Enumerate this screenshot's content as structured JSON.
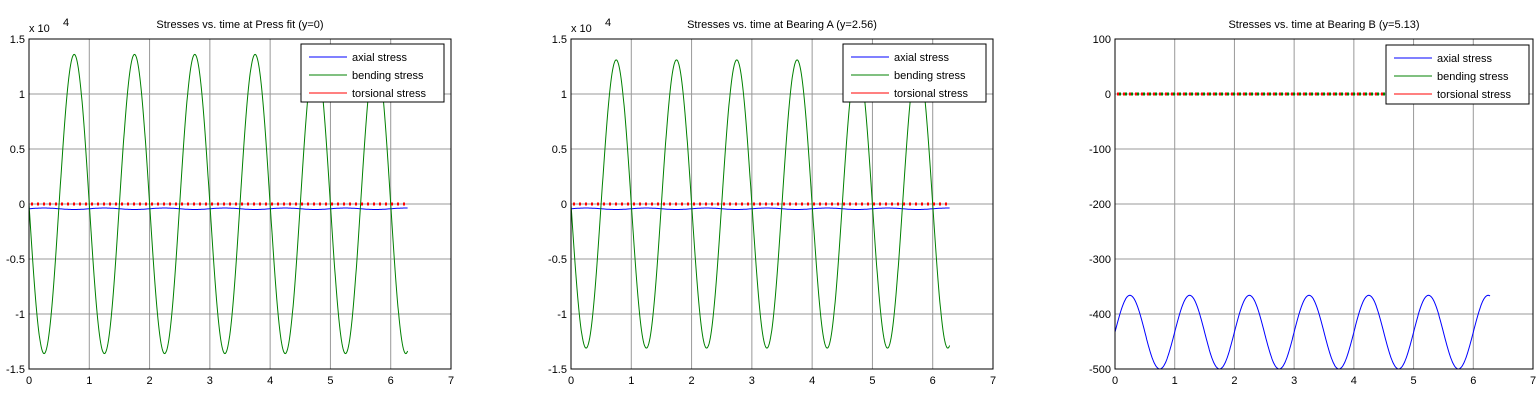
{
  "chart_data": [
    {
      "type": "line",
      "title": "Stresses vs. time at Press fit (y=0)",
      "exponent_label": "x 10",
      "exponent_power": "4",
      "xlim": [
        0,
        7
      ],
      "ylim": [
        -1.5,
        1.5
      ],
      "y_scale": 10000,
      "xticks": [
        "0",
        "1",
        "2",
        "3",
        "4",
        "5",
        "6",
        "7"
      ],
      "yticks": [
        "-1.5",
        "-1",
        "-0.5",
        "0",
        "0.5",
        "1",
        "1.5"
      ],
      "grid": true,
      "legend_position": "top-right",
      "t_range": [
        0,
        6.28
      ],
      "series": [
        {
          "name": "axial stress",
          "color": "#0000ff",
          "offset": -433,
          "amplitude": 67,
          "period": 1,
          "sign": 1
        },
        {
          "name": "bending stress",
          "color": "#008000",
          "offset": 0,
          "amplitude": 13600,
          "period": 1,
          "sign": -1
        },
        {
          "name": "torsional stress",
          "color": "#ff0000",
          "offset": 0,
          "amplitude": 0,
          "period": 1,
          "sign": 1
        }
      ]
    },
    {
      "type": "line",
      "title": "Stresses vs. time at Bearing A (y=2.56)",
      "exponent_label": "x 10",
      "exponent_power": "4",
      "xlim": [
        0,
        7
      ],
      "ylim": [
        -1.5,
        1.5
      ],
      "y_scale": 10000,
      "xticks": [
        "0",
        "1",
        "2",
        "3",
        "4",
        "5",
        "6",
        "7"
      ],
      "yticks": [
        "-1.5",
        "-1",
        "-0.5",
        "0",
        "0.5",
        "1",
        "1.5"
      ],
      "grid": true,
      "legend_position": "top-right",
      "t_range": [
        0,
        6.28
      ],
      "series": [
        {
          "name": "axial stress",
          "color": "#0000ff",
          "offset": -433,
          "amplitude": 67,
          "period": 1,
          "sign": 1
        },
        {
          "name": "bending stress",
          "color": "#008000",
          "offset": 0,
          "amplitude": 13100,
          "period": 1,
          "sign": -1
        },
        {
          "name": "torsional stress",
          "color": "#ff0000",
          "offset": 0,
          "amplitude": 0,
          "period": 1,
          "sign": 1
        }
      ]
    },
    {
      "type": "line",
      "title": "Stresses vs. time at Bearing B (y=5.13)",
      "xlim": [
        0,
        7
      ],
      "ylim": [
        -500,
        100
      ],
      "y_scale": 1,
      "xticks": [
        "0",
        "1",
        "2",
        "3",
        "4",
        "5",
        "6",
        "7"
      ],
      "yticks": [
        "-500",
        "-400",
        "-300",
        "-200",
        "-100",
        "0",
        "100"
      ],
      "grid": true,
      "legend_position": "top-right",
      "t_range": [
        0,
        6.28
      ],
      "series": [
        {
          "name": "axial stress",
          "color": "#0000ff",
          "offset": -433,
          "amplitude": 67,
          "period": 1,
          "sign": 1
        },
        {
          "name": "bending stress",
          "color": "#008000",
          "offset": 0,
          "amplitude": 0,
          "period": 1,
          "sign": -1
        },
        {
          "name": "torsional stress",
          "color": "#ff0000",
          "offset": 0,
          "amplitude": 0,
          "period": 1,
          "sign": 1
        }
      ]
    }
  ]
}
